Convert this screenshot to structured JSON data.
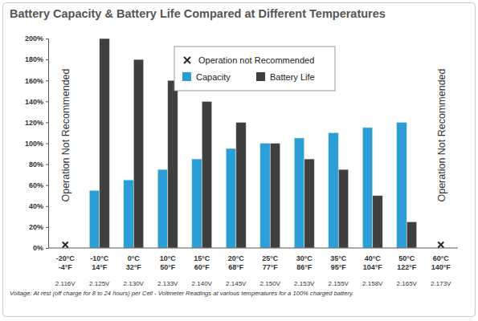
{
  "chart_data": {
    "type": "bar",
    "title": "Battery Capacity & Battery Life Compared at Different Temperatures",
    "categories": [
      "-20°C",
      "-10°C",
      "0°C",
      "10°C",
      "15°C",
      "20°C",
      "25°C",
      "30°C",
      "35°C",
      "40°C",
      "50°C",
      "60°C"
    ],
    "categories_fahrenheit": [
      "-4°F",
      "14°F",
      "32°F",
      "50°F",
      "60°F",
      "68°F",
      "77°F",
      "86°F",
      "95°F",
      "104°F",
      "122°F",
      "140°F"
    ],
    "voltages": [
      "2.116V",
      "2.125V",
      "2.130V",
      "2.133V",
      "2.140V",
      "2.145V",
      "2.150V",
      "2.153V",
      "2.155V",
      "2.158V",
      "2.165V",
      "2.173V"
    ],
    "voltage_note": "Voltage:  At rest (off charge for 8 to 24 hours) per Cell - Voltmeter Readings at various temperatures for a 100% charged battery.",
    "series": [
      {
        "name": "Capacity",
        "color": "#2b9ed8",
        "values": [
          null,
          55,
          65,
          75,
          85,
          95,
          100,
          105,
          110,
          115,
          120,
          null
        ]
      },
      {
        "name": "Battery Life",
        "color": "#3f3f3f",
        "values": [
          null,
          200,
          180,
          160,
          140,
          120,
          100,
          85,
          75,
          50,
          25,
          null
        ]
      }
    ],
    "marker_legend": "Operation not Recommended",
    "annotations": [
      {
        "text": "Operation Not Recommended",
        "category": "-20°C"
      },
      {
        "text": "Operation Not Recommended",
        "category": "60°C"
      }
    ],
    "ylim": [
      0,
      200
    ],
    "yticks": [
      {
        "value": 0,
        "label": "0%"
      },
      {
        "value": 20,
        "label": "20%"
      },
      {
        "value": 40,
        "label": "40%"
      },
      {
        "value": 60,
        "label": "60%"
      },
      {
        "value": 80,
        "label": "80%"
      },
      {
        "value": 100,
        "label": "100%"
      },
      {
        "value": 120,
        "label": "120%"
      },
      {
        "value": 140,
        "label": "140%"
      },
      {
        "value": 160,
        "label": "160%"
      },
      {
        "value": 180,
        "label": "180%"
      },
      {
        "value": 200,
        "label": "200%"
      }
    ],
    "grid": false,
    "legend": "top"
  }
}
